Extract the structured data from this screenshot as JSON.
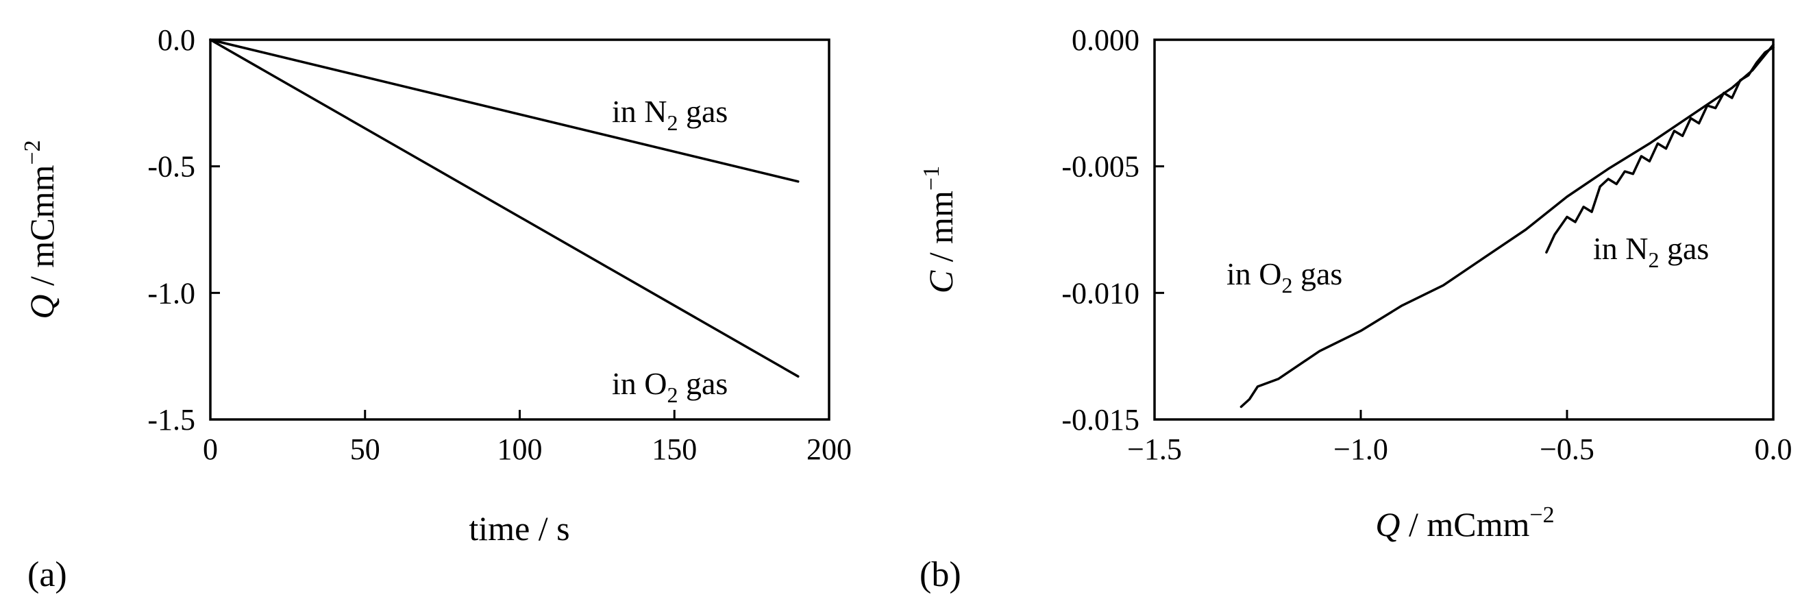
{
  "chart_data": [
    {
      "panel": "(a)",
      "type": "line",
      "xlabel": "time / s",
      "ylabel": {
        "var": "Q",
        "unit": " / mCmm",
        "exp": "−2"
      },
      "xlim": [
        0,
        200
      ],
      "ylim": [
        -1.5,
        0.0
      ],
      "xticks": [
        "0",
        "50",
        "100",
        "150",
        "200"
      ],
      "yticks": [
        "0.0",
        "-0.5",
        "-1.0",
        "-1.5"
      ],
      "grid": false,
      "series": [
        {
          "name": "in N2 gas",
          "x": [
            0,
            190
          ],
          "y": [
            0.0,
            -0.56
          ]
        },
        {
          "name": "in O2 gas",
          "x": [
            0,
            190
          ],
          "y": [
            0.0,
            -1.33
          ]
        }
      ],
      "annotations": [
        {
          "pre": "in N",
          "sub": "2",
          "post": " gas"
        },
        {
          "pre": "in O",
          "sub": "2",
          "post": " gas"
        }
      ]
    },
    {
      "panel": "(b)",
      "type": "line",
      "xlabel": {
        "var": "Q",
        "unit": " / mCmm",
        "exp": "−2"
      },
      "ylabel": {
        "var": "C",
        "unit": " / mm",
        "exp": "−1"
      },
      "xlim": [
        -1.5,
        0.0
      ],
      "ylim": [
        -0.015,
        0.0
      ],
      "xticks": [
        "−1.5",
        "−1.0",
        "−0.5",
        "0.0"
      ],
      "yticks": [
        "0.000",
        "-0.005",
        "-0.010",
        "-0.015"
      ],
      "grid": false,
      "series": [
        {
          "name": "in O2 gas",
          "x": [
            -1.29,
            -1.27,
            -1.25,
            -1.2,
            -1.1,
            -1.0,
            -0.9,
            -0.8,
            -0.7,
            -0.6,
            -0.5,
            -0.4,
            -0.3,
            -0.2,
            -0.1,
            -0.05,
            -0.02,
            0.0
          ],
          "y": [
            -0.0145,
            -0.0142,
            -0.0137,
            -0.0134,
            -0.0123,
            -0.0115,
            -0.0105,
            -0.0097,
            -0.0086,
            -0.0075,
            -0.0062,
            -0.0051,
            -0.0041,
            -0.003,
            -0.0019,
            -0.0012,
            -0.0006,
            -0.0002
          ]
        },
        {
          "name": "in N2 gas",
          "x": [
            -0.55,
            -0.53,
            -0.5,
            -0.48,
            -0.46,
            -0.44,
            -0.42,
            -0.4,
            -0.38,
            -0.36,
            -0.34,
            -0.32,
            -0.3,
            -0.28,
            -0.26,
            -0.24,
            -0.22,
            -0.2,
            -0.18,
            -0.16,
            -0.14,
            -0.12,
            -0.1,
            -0.08,
            -0.06,
            -0.04,
            -0.02,
            0.0
          ],
          "y": [
            -0.0084,
            -0.0077,
            -0.007,
            -0.0072,
            -0.0066,
            -0.0068,
            -0.0058,
            -0.0055,
            -0.0057,
            -0.0052,
            -0.0053,
            -0.0046,
            -0.0048,
            -0.0041,
            -0.0043,
            -0.0036,
            -0.0038,
            -0.0031,
            -0.0033,
            -0.0026,
            -0.0027,
            -0.0021,
            -0.0023,
            -0.0016,
            -0.0014,
            -0.0009,
            -0.0005,
            -0.0003
          ]
        }
      ],
      "annotations": [
        {
          "pre": "in O",
          "sub": "2",
          "post": " gas"
        },
        {
          "pre": "in N",
          "sub": "2",
          "post": " gas"
        }
      ]
    }
  ]
}
